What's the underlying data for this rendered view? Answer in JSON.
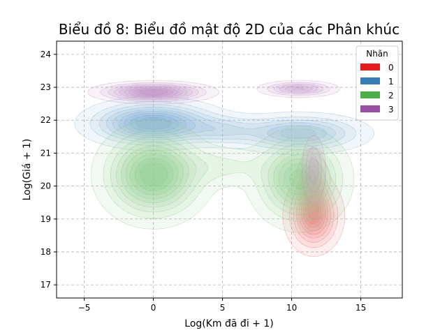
{
  "chart_data": {
    "type": "density_contour",
    "title": "Biểu đồ 8: Biểu đồ mật độ 2D của các Phân khúc",
    "xlabel": "Log(Km đã đi + 1)",
    "ylabel": "Log(Giá + 1)",
    "xlim": [
      -7,
      18
    ],
    "ylim": [
      16.6,
      24.4
    ],
    "xticks": [
      -5,
      0,
      5,
      10,
      15
    ],
    "yticks": [
      17,
      18,
      19,
      20,
      21,
      22,
      23,
      24
    ],
    "xtick_labels": [
      "−5",
      "0",
      "5",
      "10",
      "15"
    ],
    "ytick_labels": [
      "17",
      "18",
      "19",
      "20",
      "21",
      "22",
      "23",
      "24"
    ],
    "grid": true,
    "legend": {
      "title": "Nhãn",
      "placement": "top-right",
      "entries": [
        "0",
        "1",
        "2",
        "3"
      ]
    },
    "series": [
      {
        "name": "0",
        "color": "#e41a1c",
        "modes": [
          {
            "x": 11.6,
            "y": 19.1,
            "sx": 1.0,
            "sy": 0.55,
            "w": 1.0
          },
          {
            "x": 11.5,
            "y": 19.9,
            "sx": 0.55,
            "sy": 0.6,
            "w": 0.7
          }
        ]
      },
      {
        "name": "1",
        "color": "#377eb8",
        "modes": [
          {
            "x": 0.0,
            "y": 21.9,
            "sx": 2.4,
            "sy": 0.35,
            "w": 1.0
          },
          {
            "x": 10.5,
            "y": 21.6,
            "sx": 2.5,
            "sy": 0.3,
            "w": 0.65
          },
          {
            "x": 5.0,
            "y": 21.7,
            "sx": 1.6,
            "sy": 0.25,
            "w": 0.3
          }
        ]
      },
      {
        "name": "2",
        "color": "#4daf4a",
        "modes": [
          {
            "x": 0.0,
            "y": 20.35,
            "sx": 1.9,
            "sy": 0.7,
            "w": 1.0
          },
          {
            "x": 10.6,
            "y": 20.2,
            "sx": 1.7,
            "sy": 0.7,
            "w": 0.85
          },
          {
            "x": 5.0,
            "y": 20.6,
            "sx": 2.0,
            "sy": 0.35,
            "w": 0.18
          }
        ]
      },
      {
        "name": "3",
        "color": "#984ea3",
        "modes": [
          {
            "x": 0.0,
            "y": 22.85,
            "sx": 2.0,
            "sy": 0.15,
            "w": 1.0
          },
          {
            "x": 10.5,
            "y": 22.95,
            "sx": 1.4,
            "sy": 0.12,
            "w": 0.6
          },
          {
            "x": 11.6,
            "y": 20.5,
            "sx": 0.45,
            "sy": 0.55,
            "w": 0.35
          }
        ]
      }
    ]
  }
}
